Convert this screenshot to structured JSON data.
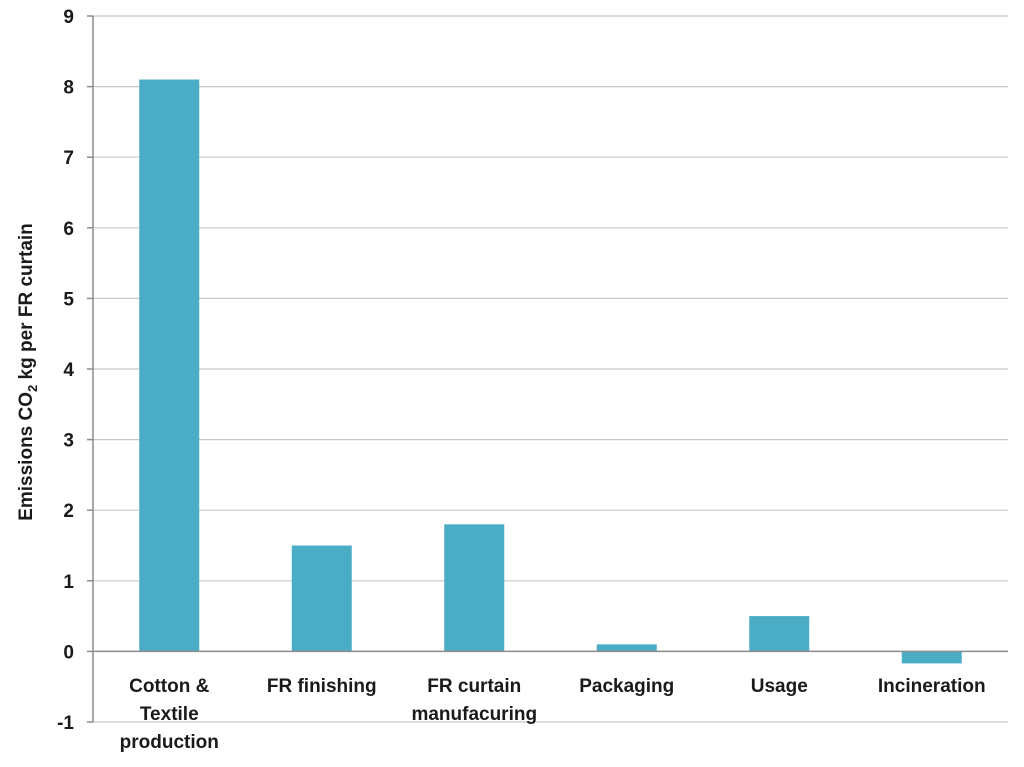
{
  "chart_data": {
    "type": "bar",
    "categories": [
      [
        "Cotton &",
        "Textile",
        "production"
      ],
      [
        "FR finishing"
      ],
      [
        "FR curtain",
        "manufacuring"
      ],
      [
        "Packaging"
      ],
      [
        "Usage"
      ],
      [
        "Incineration"
      ]
    ],
    "values": [
      8.1,
      1.5,
      1.8,
      0.1,
      0.5,
      -0.17
    ],
    "ylabel": {
      "before": "Emissions CO",
      "subscript": "2",
      "after": " kg per FR curtain"
    },
    "ylim": [
      -1,
      9
    ],
    "yticks": [
      -1,
      0,
      1,
      2,
      3,
      4,
      5,
      6,
      7,
      8,
      9
    ],
    "grid": true,
    "colors": {
      "bar": "#4bacc6",
      "grid": "#c8c8c8",
      "axis": "#8c8c8c"
    }
  }
}
